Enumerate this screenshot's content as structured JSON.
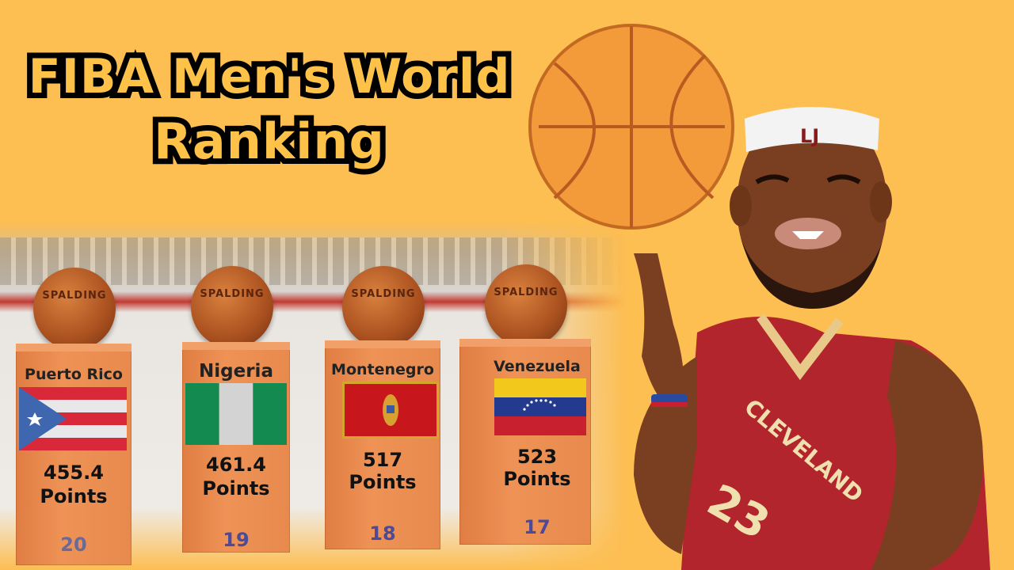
{
  "title": {
    "line1": "FIBA Men's World",
    "line2": "Ranking"
  },
  "ball_brand": "SPALDING",
  "entries": [
    {
      "country": "Puerto Rico",
      "points": "455.4",
      "points_label": "Points",
      "rank": "20",
      "flag": "puerto-rico-flag"
    },
    {
      "country": "Nigeria",
      "points": "461.4",
      "points_label": "Points",
      "rank": "19",
      "flag": "nigeria-flag"
    },
    {
      "country": "Montenegro",
      "points": "517",
      "points_label": "Points",
      "rank": "18",
      "flag": "montenegro-flag"
    },
    {
      "country": "Venezuela",
      "points": "523",
      "points_label": "Points",
      "rank": "17",
      "flag": "venezuela-flag"
    }
  ],
  "player": {
    "headband": "LJ",
    "jersey_text": "CLEVELAND",
    "jersey_number": "23"
  },
  "colors": {
    "background": "#fdbe52",
    "title_fill": "#fdc247",
    "pillar": "#ea8a4d",
    "rank_text": "#4b4b9a",
    "jersey": "#b3252c"
  }
}
